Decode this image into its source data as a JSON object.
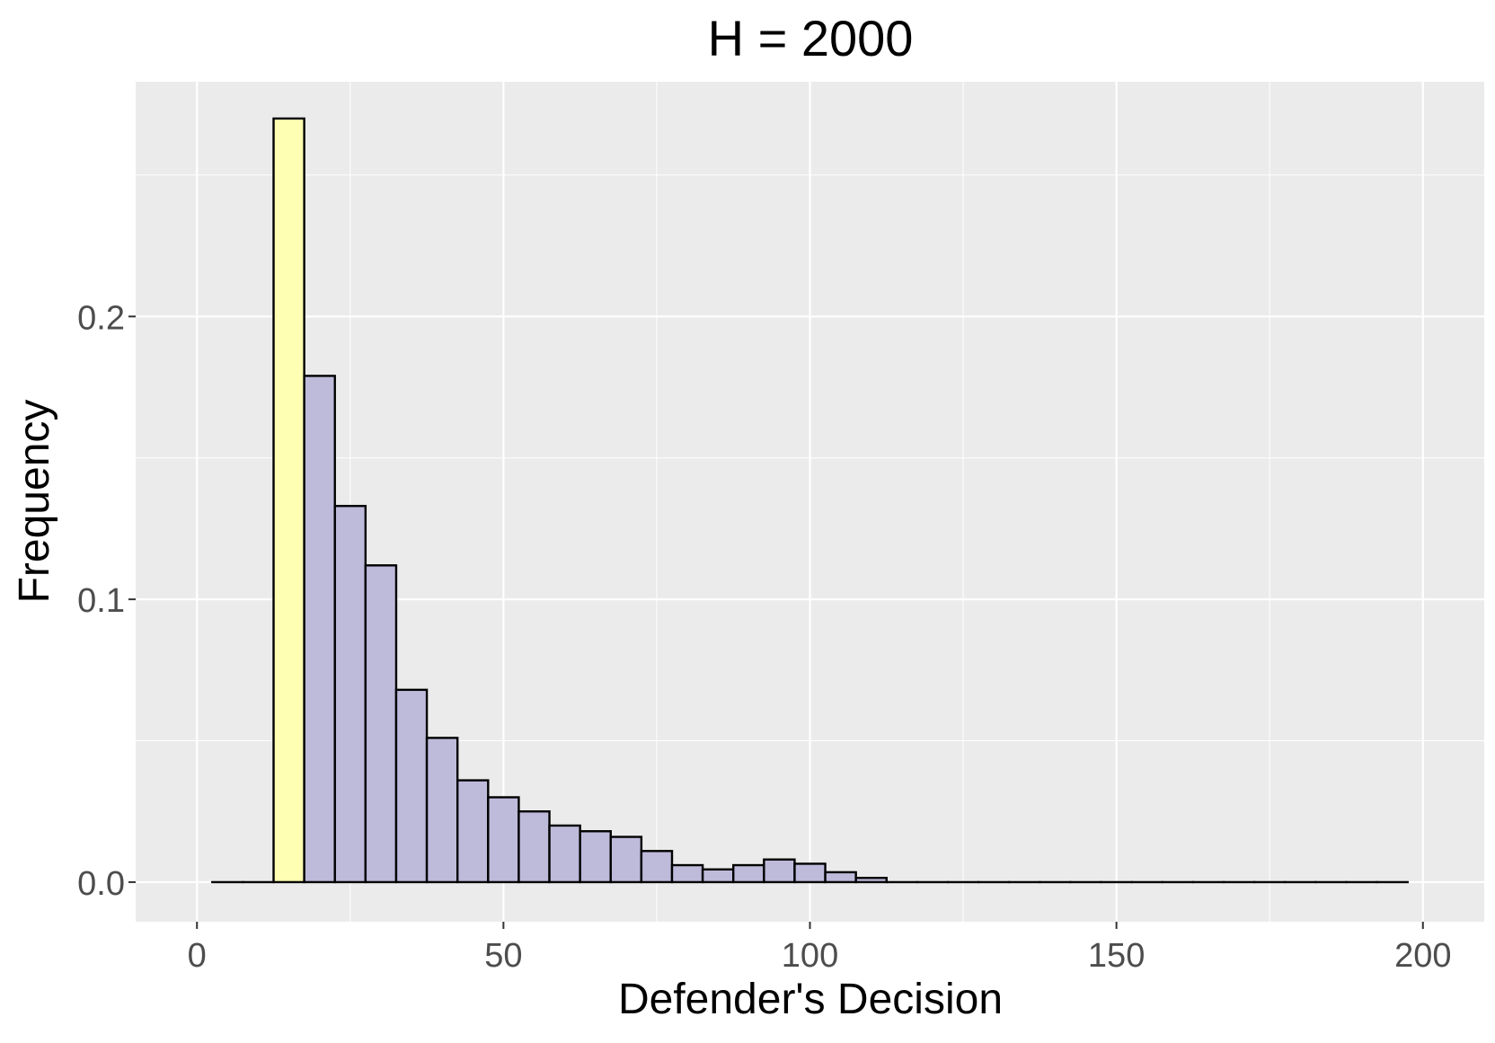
{
  "chart_data": {
    "type": "bar",
    "title": "H = 2000",
    "xlabel": "Defender's Decision",
    "ylabel": "Frequency",
    "xlim": [
      -10,
      210
    ],
    "ylim": [
      -0.014,
      0.283
    ],
    "x_ticks": [
      0,
      50,
      100,
      150,
      200
    ],
    "x_tick_labels": [
      "0",
      "50",
      "100",
      "150",
      "200"
    ],
    "y_ticks": [
      0.0,
      0.1,
      0.2
    ],
    "y_tick_labels": [
      "0.0",
      "0.1",
      "0.2"
    ],
    "grid": true,
    "bin_width": 5,
    "bins": [
      {
        "x": 5,
        "value": 0.0,
        "color": "#BEBADA"
      },
      {
        "x": 10,
        "value": 0.0,
        "color": "#BEBADA"
      },
      {
        "x": 15,
        "value": 0.27,
        "color": "#FFFFB3"
      },
      {
        "x": 20,
        "value": 0.179,
        "color": "#BEBADA"
      },
      {
        "x": 25,
        "value": 0.133,
        "color": "#BEBADA"
      },
      {
        "x": 30,
        "value": 0.112,
        "color": "#BEBADA"
      },
      {
        "x": 35,
        "value": 0.068,
        "color": "#BEBADA"
      },
      {
        "x": 40,
        "value": 0.051,
        "color": "#BEBADA"
      },
      {
        "x": 45,
        "value": 0.036,
        "color": "#BEBADA"
      },
      {
        "x": 50,
        "value": 0.03,
        "color": "#BEBADA"
      },
      {
        "x": 55,
        "value": 0.025,
        "color": "#BEBADA"
      },
      {
        "x": 60,
        "value": 0.02,
        "color": "#BEBADA"
      },
      {
        "x": 65,
        "value": 0.018,
        "color": "#BEBADA"
      },
      {
        "x": 70,
        "value": 0.016,
        "color": "#BEBADA"
      },
      {
        "x": 75,
        "value": 0.011,
        "color": "#BEBADA"
      },
      {
        "x": 80,
        "value": 0.006,
        "color": "#BEBADA"
      },
      {
        "x": 85,
        "value": 0.0045,
        "color": "#BEBADA"
      },
      {
        "x": 90,
        "value": 0.006,
        "color": "#BEBADA"
      },
      {
        "x": 95,
        "value": 0.008,
        "color": "#BEBADA"
      },
      {
        "x": 100,
        "value": 0.0065,
        "color": "#BEBADA"
      },
      {
        "x": 105,
        "value": 0.0035,
        "color": "#BEBADA"
      },
      {
        "x": 110,
        "value": 0.0015,
        "color": "#BEBADA"
      },
      {
        "x": 115,
        "value": 0.0,
        "color": "#BEBADA"
      },
      {
        "x": 120,
        "value": 0.0,
        "color": "#BEBADA"
      },
      {
        "x": 125,
        "value": 0.0,
        "color": "#BEBADA"
      },
      {
        "x": 130,
        "value": 0.0,
        "color": "#BEBADA"
      },
      {
        "x": 135,
        "value": 0.0,
        "color": "#BEBADA"
      },
      {
        "x": 140,
        "value": 0.0,
        "color": "#BEBADA"
      },
      {
        "x": 145,
        "value": 0.0,
        "color": "#BEBADA"
      },
      {
        "x": 150,
        "value": 0.0,
        "color": "#BEBADA"
      },
      {
        "x": 155,
        "value": 0.0,
        "color": "#BEBADA"
      },
      {
        "x": 160,
        "value": 0.0,
        "color": "#BEBADA"
      },
      {
        "x": 165,
        "value": 0.0,
        "color": "#BEBADA"
      },
      {
        "x": 170,
        "value": 0.0,
        "color": "#BEBADA"
      },
      {
        "x": 175,
        "value": 0.0,
        "color": "#BEBADA"
      },
      {
        "x": 180,
        "value": 0.0,
        "color": "#BEBADA"
      },
      {
        "x": 185,
        "value": 0.0,
        "color": "#BEBADA"
      },
      {
        "x": 190,
        "value": 0.0,
        "color": "#BEBADA"
      },
      {
        "x": 195,
        "value": 0.0,
        "color": "#BEBADA"
      }
    ],
    "panel_background": "#EBEBEB",
    "grid_color": "#FFFFFF",
    "bar_outline": "#000000"
  }
}
